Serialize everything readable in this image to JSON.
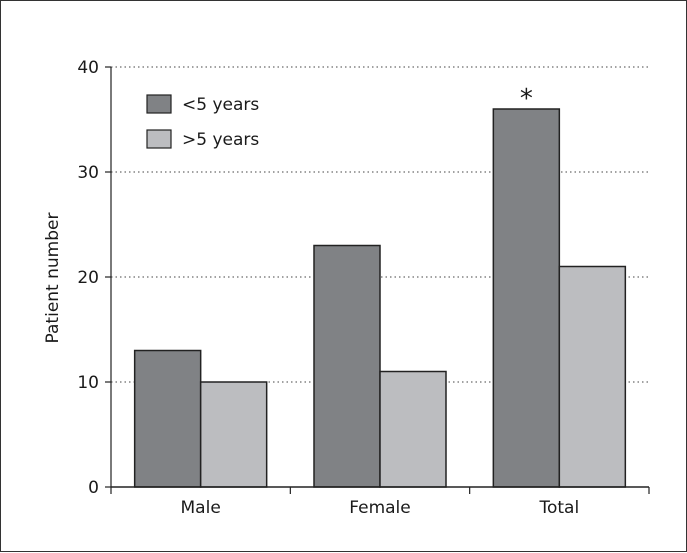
{
  "chart_data": {
    "type": "bar",
    "title": "",
    "xlabel": "",
    "ylabel": "Patient number",
    "ylim": [
      0,
      40
    ],
    "yticks": [
      0,
      10,
      20,
      30,
      40
    ],
    "grid": "horizontal dotted",
    "legend_position": "top-left",
    "categories": [
      "Male",
      "Female",
      "Total"
    ],
    "series": [
      {
        "name": "<5 years",
        "color": "#808285",
        "values": [
          13,
          23,
          36
        ]
      },
      {
        "name": ">5 years",
        "color": "#bcbdc0",
        "values": [
          10,
          11,
          21
        ]
      }
    ],
    "annotations": [
      {
        "text": "*",
        "category": "Total",
        "series": "<5 years"
      }
    ]
  }
}
